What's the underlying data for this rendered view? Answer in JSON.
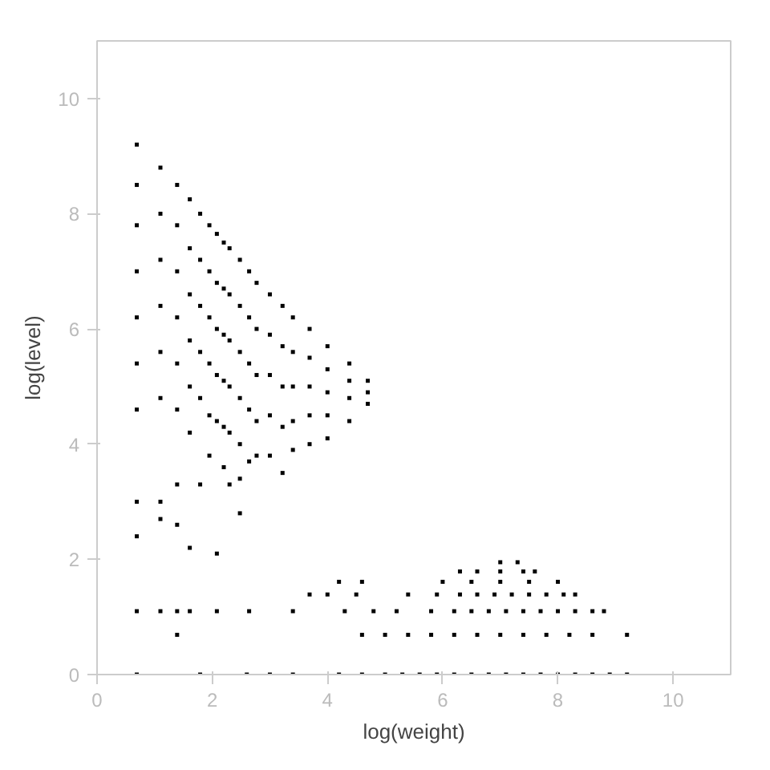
{
  "chart_data": {
    "type": "scatter",
    "xlabel": "log(weight)",
    "ylabel": "log(level)",
    "xlim": [
      0,
      11
    ],
    "ylim": [
      0,
      11
    ],
    "xticks": [
      0,
      2,
      4,
      6,
      8,
      10
    ],
    "yticks": [
      0,
      2,
      4,
      6,
      8,
      10
    ],
    "grid": false,
    "marker": "square",
    "series": [
      {
        "color": "#000000",
        "x": [
          0.69,
          0.69,
          0.69,
          0.69,
          0.69,
          0.69,
          0.69,
          0.69,
          0.69,
          0.69,
          0.69
        ],
        "values": [
          9.2,
          8.5,
          7.8,
          7.0,
          6.2,
          5.4,
          4.6,
          3.0,
          2.4,
          1.1,
          0
        ]
      },
      {
        "color": "#000000",
        "x": [
          1.1,
          1.1,
          1.1,
          1.1,
          1.1,
          1.1,
          1.1,
          1.1,
          1.1
        ],
        "values": [
          8.8,
          8.0,
          7.2,
          6.4,
          5.6,
          4.8,
          3.0,
          2.7,
          1.1
        ]
      },
      {
        "color": "#000000",
        "x": [
          1.39,
          1.39,
          1.39,
          1.39,
          1.39,
          1.39,
          1.39,
          1.39,
          1.39,
          1.39
        ],
        "values": [
          8.5,
          7.8,
          7.0,
          6.2,
          5.4,
          4.6,
          3.3,
          2.6,
          1.1,
          0.69
        ]
      },
      {
        "color": "#000000",
        "x": [
          1.61,
          1.61,
          1.61,
          1.61,
          1.61,
          1.61,
          1.61,
          1.61
        ],
        "values": [
          8.25,
          7.4,
          6.6,
          5.8,
          5.0,
          4.2,
          2.2,
          1.1
        ]
      },
      {
        "color": "#000000",
        "x": [
          1.79,
          1.79,
          1.79,
          1.79,
          1.79,
          1.79,
          1.79
        ],
        "values": [
          8.0,
          7.2,
          6.4,
          5.6,
          4.8,
          3.3,
          0
        ]
      },
      {
        "color": "#000000",
        "x": [
          1.95,
          1.95,
          1.95,
          1.95,
          1.95,
          1.95
        ],
        "values": [
          7.8,
          7.0,
          6.2,
          5.4,
          4.5,
          3.8
        ]
      },
      {
        "color": "#000000",
        "x": [
          2.08,
          2.08,
          2.08,
          2.08,
          2.08,
          2.08,
          2.08
        ],
        "values": [
          7.65,
          6.8,
          6.0,
          5.2,
          4.4,
          2.1,
          1.1
        ]
      },
      {
        "color": "#000000",
        "x": [
          2.2,
          2.2,
          2.2,
          2.2,
          2.2,
          2.2
        ],
        "values": [
          7.5,
          6.7,
          5.9,
          5.1,
          4.3,
          3.6
        ]
      },
      {
        "color": "#000000",
        "x": [
          2.3,
          2.3,
          2.3,
          2.3,
          2.3,
          2.3
        ],
        "values": [
          7.4,
          6.6,
          5.8,
          5.0,
          4.2,
          3.3
        ]
      },
      {
        "color": "#000000",
        "x": [
          2.48,
          2.48,
          2.48,
          2.48,
          2.48,
          2.48,
          2.48
        ],
        "values": [
          7.2,
          6.4,
          5.6,
          4.8,
          4.0,
          3.4,
          2.8
        ]
      },
      {
        "color": "#000000",
        "x": [
          2.64,
          2.64,
          2.64,
          2.64,
          2.64,
          2.64
        ],
        "values": [
          7.0,
          6.2,
          5.4,
          4.6,
          3.7,
          1.1
        ]
      },
      {
        "color": "#000000",
        "x": [
          2.77,
          2.77,
          2.77,
          2.77,
          2.77
        ],
        "values": [
          6.8,
          6.0,
          5.2,
          4.4,
          3.8
        ]
      },
      {
        "color": "#000000",
        "x": [
          3.0,
          3.0,
          3.0,
          3.0,
          3.0,
          3.0
        ],
        "values": [
          6.6,
          5.9,
          5.2,
          4.5,
          3.8,
          0
        ]
      },
      {
        "color": "#000000",
        "x": [
          3.22,
          3.22,
          3.22,
          3.22,
          3.22
        ],
        "values": [
          6.4,
          5.7,
          5.0,
          4.3,
          3.5
        ]
      },
      {
        "color": "#000000",
        "x": [
          3.4,
          3.4,
          3.4,
          3.4,
          3.4,
          3.4
        ],
        "values": [
          6.2,
          5.6,
          5.0,
          4.4,
          3.9,
          1.1
        ]
      },
      {
        "color": "#000000",
        "x": [
          3.69,
          3.69,
          3.69,
          3.69,
          3.69,
          3.69
        ],
        "values": [
          6.0,
          5.5,
          5.0,
          4.5,
          4.0,
          1.39
        ]
      },
      {
        "color": "#000000",
        "x": [
          4.0,
          4.0,
          4.0,
          4.0,
          4.0
        ],
        "values": [
          5.7,
          5.3,
          4.9,
          4.5,
          4.1
        ]
      },
      {
        "color": "#000000",
        "x": [
          4.38,
          4.38,
          4.38,
          4.38
        ],
        "values": [
          5.4,
          5.1,
          4.8,
          4.4
        ]
      },
      {
        "color": "#000000",
        "x": [
          4.7,
          4.7,
          4.7
        ],
        "values": [
          5.1,
          4.9,
          4.7
        ]
      },
      {
        "color": "#000000",
        "x": [
          2.6,
          3.4,
          4.2,
          4.6,
          5.0,
          5.3,
          5.6,
          5.9,
          6.2,
          6.5,
          6.8,
          7.1,
          7.4,
          7.7,
          8.0,
          8.3,
          8.6,
          8.9,
          9.2
        ],
        "values": [
          0,
          0,
          0,
          0,
          0,
          0,
          0,
          0,
          0,
          0,
          0,
          0,
          0,
          0,
          0,
          0,
          0,
          0,
          0
        ]
      },
      {
        "color": "#000000",
        "x": [
          4.6,
          5.0,
          5.4,
          5.8,
          6.2,
          6.6,
          7.0,
          7.4,
          7.8,
          8.2,
          8.6,
          9.2
        ],
        "values": [
          0.69,
          0.69,
          0.69,
          0.69,
          0.69,
          0.69,
          0.69,
          0.69,
          0.69,
          0.69,
          0.69,
          0.69
        ]
      },
      {
        "color": "#000000",
        "x": [
          4.3,
          4.8,
          5.2,
          5.8,
          6.2,
          6.5,
          6.8,
          7.1,
          7.4,
          7.7,
          8.0,
          8.3,
          8.6,
          8.8
        ],
        "values": [
          1.1,
          1.1,
          1.1,
          1.1,
          1.1,
          1.1,
          1.1,
          1.1,
          1.1,
          1.1,
          1.1,
          1.1,
          1.1,
          1.1
        ]
      },
      {
        "color": "#000000",
        "x": [
          4.0,
          4.5,
          5.4,
          5.9,
          6.3,
          6.6,
          6.9,
          7.2,
          7.5,
          7.8,
          8.1,
          8.3
        ],
        "values": [
          1.39,
          1.39,
          1.39,
          1.39,
          1.39,
          1.39,
          1.39,
          1.39,
          1.39,
          1.39,
          1.39,
          1.39
        ]
      },
      {
        "color": "#000000",
        "x": [
          4.2,
          4.6,
          6.0,
          6.5,
          7.0,
          7.5,
          8.0
        ],
        "values": [
          1.61,
          1.61,
          1.61,
          1.61,
          1.61,
          1.61,
          1.61
        ]
      },
      {
        "color": "#000000",
        "x": [
          6.3,
          6.6,
          7.0,
          7.4,
          7.6,
          7.0,
          7.3
        ],
        "values": [
          1.79,
          1.79,
          1.79,
          1.79,
          1.79,
          1.95,
          1.95
        ]
      }
    ]
  }
}
